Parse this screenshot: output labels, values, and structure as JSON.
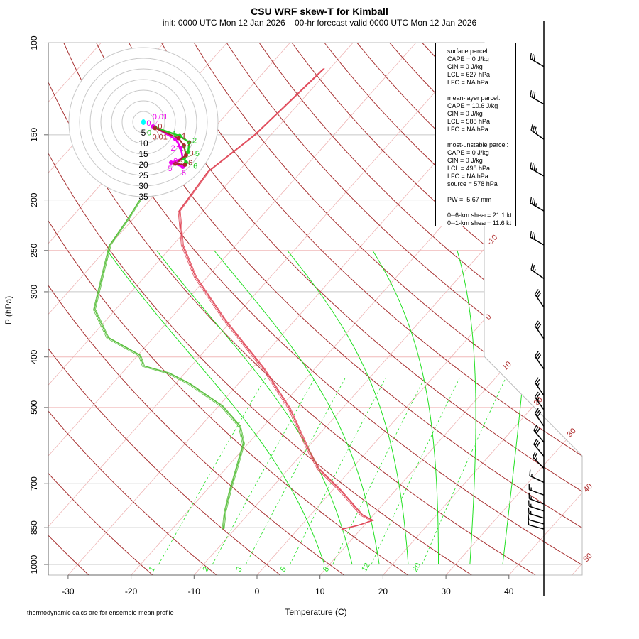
{
  "title": "CSU WRF skew-T for Kimball",
  "subtitle": "init: 0000 UTC Mon 12 Jan 2026    00-hr forecast valid 0000 UTC Mon 12 Jan 2026",
  "footnote": "thermodynamic calcs are for ensemble mean profile",
  "stats_lines": [
    "surface parcel:",
    "CAPE = 0 J/kg",
    "CIN = 0 J/kg",
    "LCL = 627 hPa",
    "LFC = NA hPa",
    "",
    "mean-layer parcel:",
    "CAPE = 10.6 J/kg",
    "CIN = 0 J/kg",
    "LCL = 588 hPa",
    "LFC = NA hPa",
    "",
    "most-unstable parcel:",
    "CAPE = 0 J/kg",
    "CIN = 0 J/kg",
    "LCL = 498 hPa",
    "LFC = NA hPa",
    "source = 578 hPa",
    "",
    "PW =  5.67 mm",
    "",
    "0--6-km shear= 21.1 kt",
    "0--1-km shear= 11.6 kt"
  ],
  "chart_data": {
    "type": "line",
    "xlabel": "Temperature (C)",
    "ylabel": "P (hPa)",
    "y_scale": "log",
    "ylim": [
      1050,
      100
    ],
    "xlim": [
      -33,
      45
    ],
    "x_ticks": [
      -30,
      -20,
      -10,
      0,
      10,
      20,
      30,
      40
    ],
    "y_ticks": [
      100,
      150,
      200,
      250,
      300,
      400,
      500,
      700,
      850,
      1000
    ],
    "isotherm_labels": [
      -10,
      0,
      10,
      20,
      30,
      40,
      50
    ],
    "mixing_ratio_labels": [
      1,
      2,
      3,
      5,
      8,
      12,
      20
    ],
    "colors": {
      "temperature": "#e04a5a",
      "dewpoint": "#5cc040",
      "dry_adiabat": "#a83232",
      "isotherm": "#eeb4b4",
      "moist": "#22e022",
      "hodo_mean": "#a52a2a",
      "hodo_member1": "#ee00ee",
      "hodo_member2": "#22cc22",
      "storm_motion": "#00ffff"
    },
    "series": [
      {
        "name": "temperature",
        "points": [
          [
            855,
            7.0
          ],
          [
            841,
            9.0
          ],
          [
            823,
            10.6
          ],
          [
            803,
            8.1
          ],
          [
            719,
            1.1
          ],
          [
            655,
            -5.3
          ],
          [
            606,
            -9.3
          ],
          [
            502,
            -18.4
          ],
          [
            422,
            -28
          ],
          [
            339,
            -41.3
          ],
          [
            281,
            -51.9
          ],
          [
            244,
            -58.5
          ],
          [
            210,
            -63.8
          ],
          [
            176,
            -64.8
          ],
          [
            150,
            -62.6
          ],
          [
            112,
            -61.0
          ]
        ]
      },
      {
        "name": "dewpoint",
        "points": [
          [
            855,
            -11.9
          ],
          [
            790,
            -14.1
          ],
          [
            719,
            -16.3
          ],
          [
            655,
            -18.3
          ],
          [
            587,
            -20.7
          ],
          [
            543,
            -23.8
          ],
          [
            497,
            -29.4
          ],
          [
            450,
            -37.8
          ],
          [
            429,
            -42.7
          ],
          [
            416,
            -47.6
          ],
          [
            397,
            -49.7
          ],
          [
            367,
            -57.3
          ],
          [
            324,
            -63.4
          ],
          [
            272,
            -67.5
          ],
          [
            244,
            -70.0
          ],
          [
            215,
            -70.9
          ],
          [
            200,
            -71.6
          ]
        ]
      }
    ],
    "wind_barbs": [
      {
        "p": 111,
        "dir": 300,
        "kt": 30
      },
      {
        "p": 131,
        "dir": 300,
        "kt": 30
      },
      {
        "p": 153,
        "dir": 305,
        "kt": 35
      },
      {
        "p": 180,
        "dir": 300,
        "kt": 35
      },
      {
        "p": 210,
        "dir": 300,
        "kt": 35
      },
      {
        "p": 244,
        "dir": 300,
        "kt": 30
      },
      {
        "p": 283,
        "dir": 305,
        "kt": 25
      },
      {
        "p": 321,
        "dir": 325,
        "kt": 30
      },
      {
        "p": 369,
        "dir": 325,
        "kt": 30
      },
      {
        "p": 422,
        "dir": 325,
        "kt": 30
      },
      {
        "p": 474,
        "dir": 325,
        "kt": 25
      },
      {
        "p": 505,
        "dir": 325,
        "kt": 25
      },
      {
        "p": 543,
        "dir": 325,
        "kt": 30
      },
      {
        "p": 583,
        "dir": 320,
        "kt": 30
      },
      {
        "p": 620,
        "dir": 320,
        "kt": 30
      },
      {
        "p": 654,
        "dir": 315,
        "kt": 25
      },
      {
        "p": 696,
        "dir": 295,
        "kt": 15
      },
      {
        "p": 736,
        "dir": 290,
        "kt": 15
      },
      {
        "p": 766,
        "dir": 290,
        "kt": 15
      },
      {
        "p": 790,
        "dir": 288,
        "kt": 15
      },
      {
        "p": 815,
        "dir": 287,
        "kt": 15
      },
      {
        "p": 836,
        "dir": 285,
        "kt": 10
      },
      {
        "p": 855,
        "dir": 285,
        "kt": 10
      }
    ],
    "hodograph": {
      "ring_labels": [
        5,
        10,
        15,
        20,
        25,
        30,
        35
      ],
      "storm_motion": [
        0,
        0
      ],
      "series": [
        {
          "name": "member1",
          "points": [
            {
              "h": "0",
              "u": 4.5,
              "v": -2.0
            },
            {
              "h": "0.01",
              "u": 5.0,
              "v": -2.2
            },
            {
              "h": "1",
              "u": 15,
              "v": -8
            },
            {
              "h": "2",
              "u": 17.5,
              "v": -12
            },
            {
              "h": "3",
              "u": 18.5,
              "v": -17
            },
            {
              "h": "5",
              "u": 13,
              "v": -19
            },
            {
              "h": "6",
              "u": 18.5,
              "v": -21
            }
          ]
        },
        {
          "name": "member2",
          "points": [
            {
              "h": "0",
              "u": 5.5,
              "v": -2.5
            },
            {
              "h": "1",
              "u": 17,
              "v": -6.5
            },
            {
              "h": "2",
              "u": 21.5,
              "v": -9.5
            },
            {
              "h": "3",
              "u": 21,
              "v": -14
            },
            {
              "h": "5",
              "u": 19,
              "v": -17
            },
            {
              "h": "6",
              "u": 20,
              "v": -19
            }
          ]
        },
        {
          "name": "mean",
          "points": [
            {
              "h": "0",
              "u": 5.3,
              "v": -2.7
            },
            {
              "h": "0.01",
              "u": 5.4,
              "v": -2.8
            },
            {
              "h": "1",
              "u": 16.5,
              "v": -7.5
            },
            {
              "h": "2",
              "u": 19,
              "v": -11
            },
            {
              "h": "3",
              "u": 20,
              "v": -15.5
            },
            {
              "h": "5",
              "u": 15,
              "v": -19.5
            },
            {
              "h": "6",
              "u": 19.5,
              "v": -20
            }
          ]
        }
      ]
    }
  }
}
